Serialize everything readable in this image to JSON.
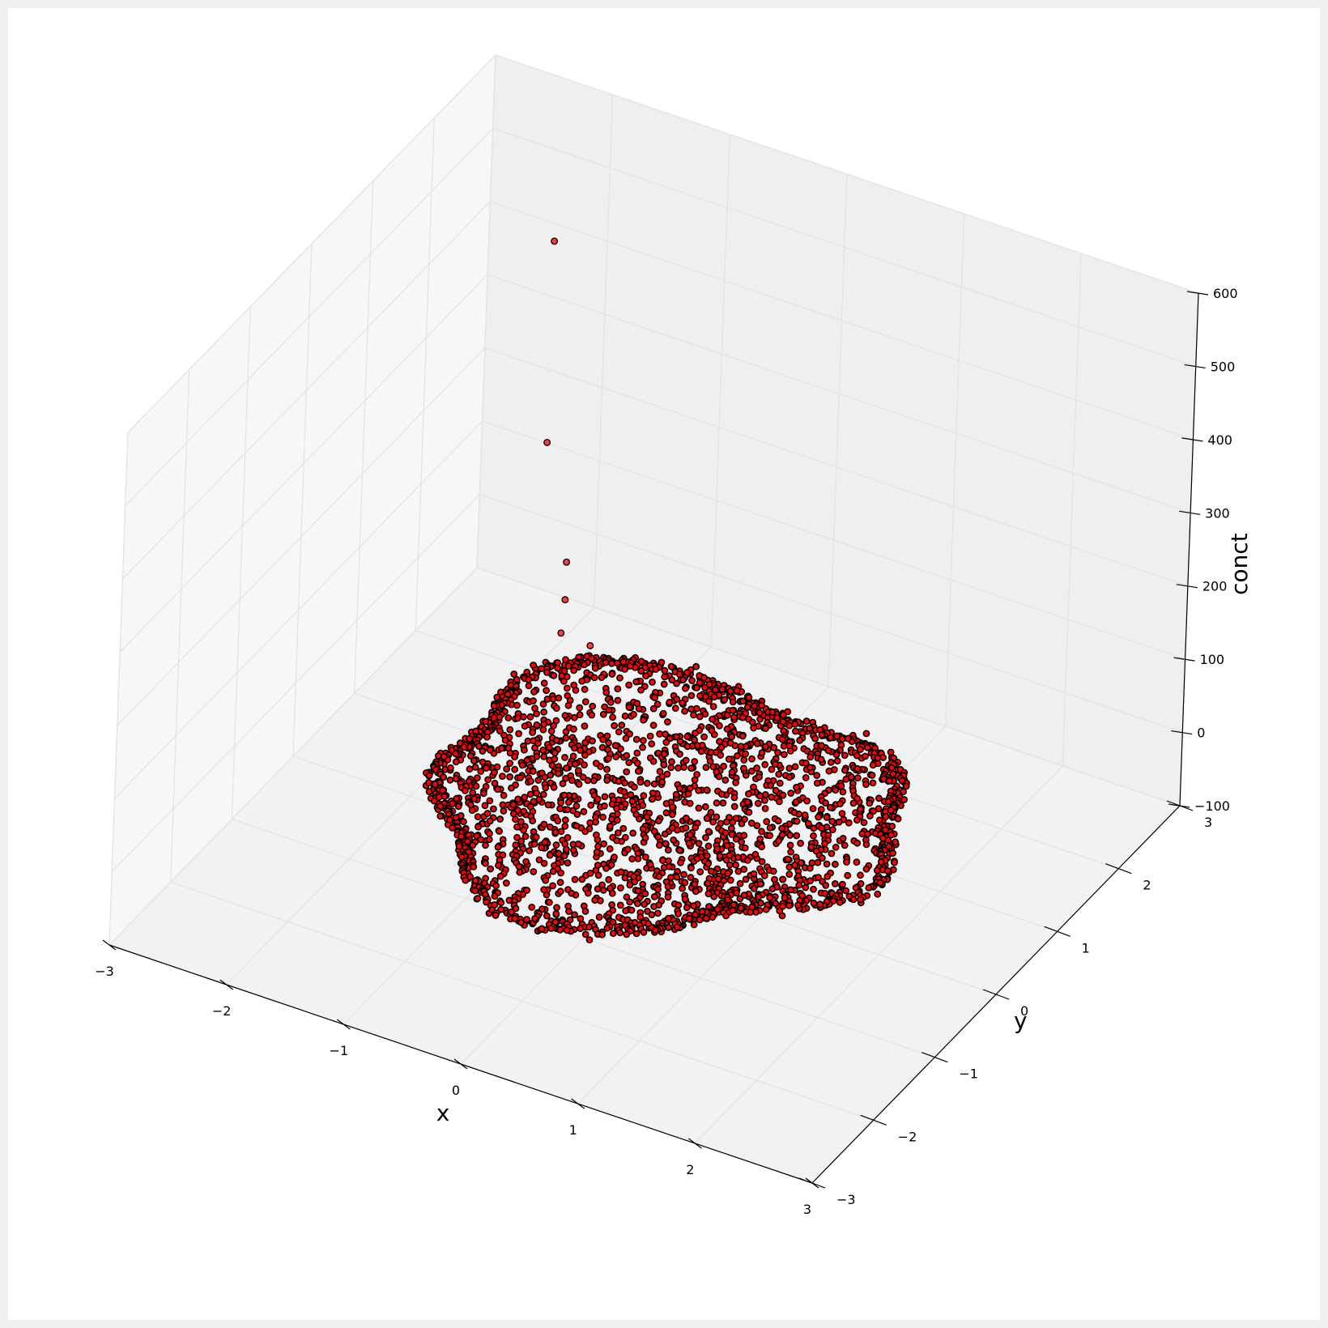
{
  "chart_data": {
    "type": "scatter",
    "projection": "3d",
    "title": "",
    "xlabel": "x",
    "ylabel": "y",
    "zlabel": "conct",
    "xlim": [
      -3,
      3
    ],
    "ylim": [
      -3,
      3
    ],
    "zlim": [
      -100,
      600
    ],
    "xticks": [
      "−3",
      "−2",
      "−1",
      "0",
      "1",
      "2",
      "3"
    ],
    "yticks": [
      "−3",
      "−2",
      "−1",
      "0",
      "1",
      "2",
      "3"
    ],
    "zticks": [
      "−100",
      "0",
      "100",
      "200",
      "300",
      "400",
      "500",
      "600"
    ],
    "grid": true,
    "marker_color": "#ff0000",
    "marker_edge_color": "#000000",
    "cloud": {
      "x_range": [
        -1.9,
        2.0
      ],
      "y_range": [
        -1.9,
        2.0
      ],
      "z_typical": 0
    },
    "outliers": [
      {
        "x": -1.9,
        "y": 1.9,
        "z": 500
      },
      {
        "x": -1.9,
        "y": 1.9,
        "z": 225
      },
      {
        "x": -1.6,
        "y": 1.7,
        "z": 95
      },
      {
        "x": -1.55,
        "y": 1.6,
        "z": 55
      },
      {
        "x": -1.5,
        "y": 1.45,
        "z": 25
      },
      {
        "x": -1.3,
        "y": 1.55,
        "z": 10
      }
    ]
  }
}
